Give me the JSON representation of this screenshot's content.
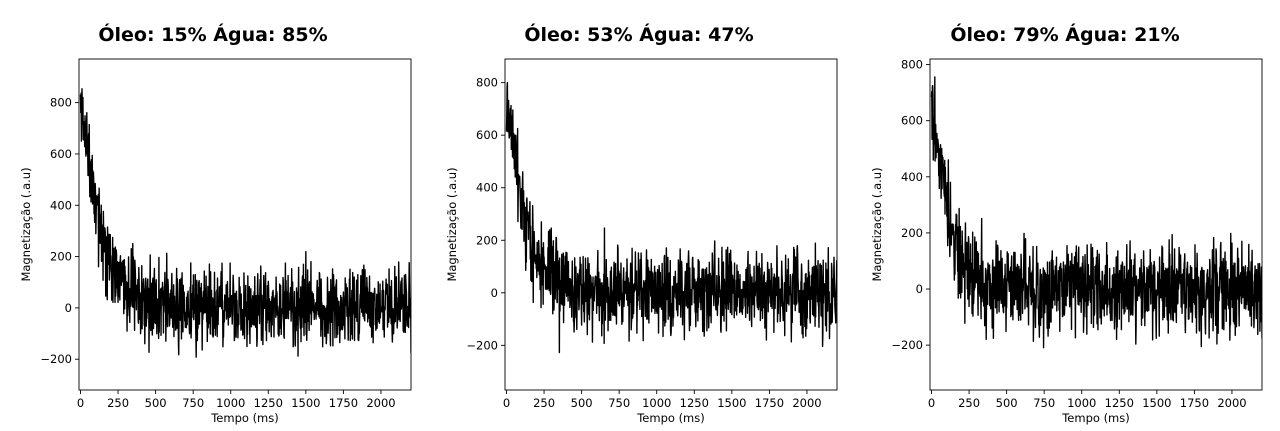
{
  "chart_data": [
    {
      "type": "line",
      "title": "Óleo: 15%   Água: 85%",
      "xlabel": "Tempo (ms)",
      "ylabel": "Magnetização (.a.u)",
      "xlim": [
        -10,
        2200
      ],
      "ylim": [
        -320,
        970
      ],
      "xticks": [
        0,
        250,
        500,
        750,
        1000,
        1250,
        1500,
        1750,
        2000
      ],
      "yticks": [
        -200,
        0,
        200,
        400,
        600,
        800
      ],
      "grid": false,
      "series": [
        {
          "color": "#000000",
          "amplitude": 800,
          "decay_ms": 85,
          "noise_std": 75,
          "x": [
            0,
            20,
            40,
            60,
            80,
            100,
            125,
            150,
            175,
            200,
            250,
            300,
            400,
            500,
            600,
            750,
            900,
            1000,
            1250,
            1500,
            1750,
            2000,
            2200
          ],
          "y": [
            800,
            720,
            640,
            560,
            490,
            420,
            350,
            280,
            230,
            190,
            130,
            90,
            40,
            15,
            5,
            0,
            0,
            0,
            0,
            0,
            0,
            0,
            0
          ]
        }
      ]
    },
    {
      "type": "line",
      "title": "Óleo: 53%   Água: 47%",
      "xlabel": "Tempo (ms)",
      "ylabel": "Magnetização (.a.u)",
      "xlim": [
        -10,
        2200
      ],
      "ylim": [
        -370,
        890
      ],
      "xticks": [
        0,
        250,
        500,
        750,
        1000,
        1250,
        1500,
        1750,
        2000
      ],
      "yticks": [
        -200,
        0,
        200,
        400,
        600,
        800
      ],
      "grid": false,
      "series": [
        {
          "color": "#000000",
          "amplitude": 760,
          "decay_ms": 75,
          "noise_std": 80,
          "x": [
            0,
            20,
            40,
            60,
            80,
            100,
            125,
            150,
            175,
            200,
            250,
            300,
            400,
            500,
            600,
            750,
            900,
            1000,
            1250,
            1500,
            1750,
            2000,
            2200
          ],
          "y": [
            760,
            660,
            570,
            480,
            410,
            350,
            280,
            220,
            170,
            140,
            90,
            50,
            20,
            5,
            0,
            0,
            0,
            0,
            0,
            0,
            0,
            0,
            0
          ]
        }
      ]
    },
    {
      "type": "line",
      "title": "Óleo: 79%   Água: 21%",
      "xlabel": "Tempo (ms)",
      "ylabel": "Magnetização (.a.u)",
      "xlim": [
        -10,
        2200
      ],
      "ylim": [
        -360,
        820
      ],
      "xticks": [
        0,
        250,
        500,
        750,
        1000,
        1250,
        1500,
        1750,
        2000
      ],
      "yticks": [
        -200,
        0,
        200,
        400,
        600,
        800
      ],
      "grid": false,
      "series": [
        {
          "color": "#000000",
          "amplitude": 720,
          "decay_ms": 70,
          "noise_std": 80,
          "x": [
            0,
            20,
            40,
            60,
            80,
            100,
            125,
            150,
            175,
            200,
            250,
            300,
            400,
            500,
            600,
            750,
            900,
            1000,
            1250,
            1500,
            1750,
            2000,
            2200
          ],
          "y": [
            720,
            620,
            530,
            450,
            380,
            320,
            250,
            200,
            150,
            120,
            70,
            40,
            10,
            0,
            0,
            0,
            0,
            0,
            0,
            0,
            0,
            0,
            0
          ]
        }
      ]
    }
  ]
}
